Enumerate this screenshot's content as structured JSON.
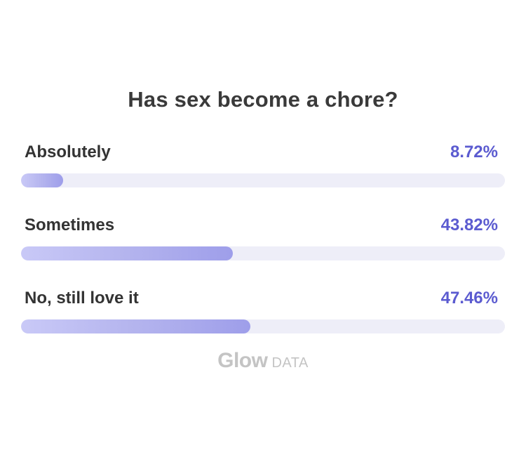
{
  "chart_data": {
    "type": "bar",
    "title": "Has sex become a chore?",
    "categories": [
      "Absolutely",
      "Sometimes",
      "No, still love it"
    ],
    "values": [
      8.72,
      43.82,
      47.46
    ],
    "value_labels": [
      "8.72%",
      "43.82%",
      "47.46%"
    ],
    "unit": "%",
    "xlim": [
      0,
      100
    ],
    "orientation": "horizontal",
    "grid": false
  },
  "watermark": {
    "brand": "Glow",
    "suffix": "DATA"
  },
  "colors": {
    "accent": "#5b5bd0",
    "bar_start": "#c9c9f7",
    "bar_end": "#9e9eea",
    "track": "#eeeef8"
  }
}
